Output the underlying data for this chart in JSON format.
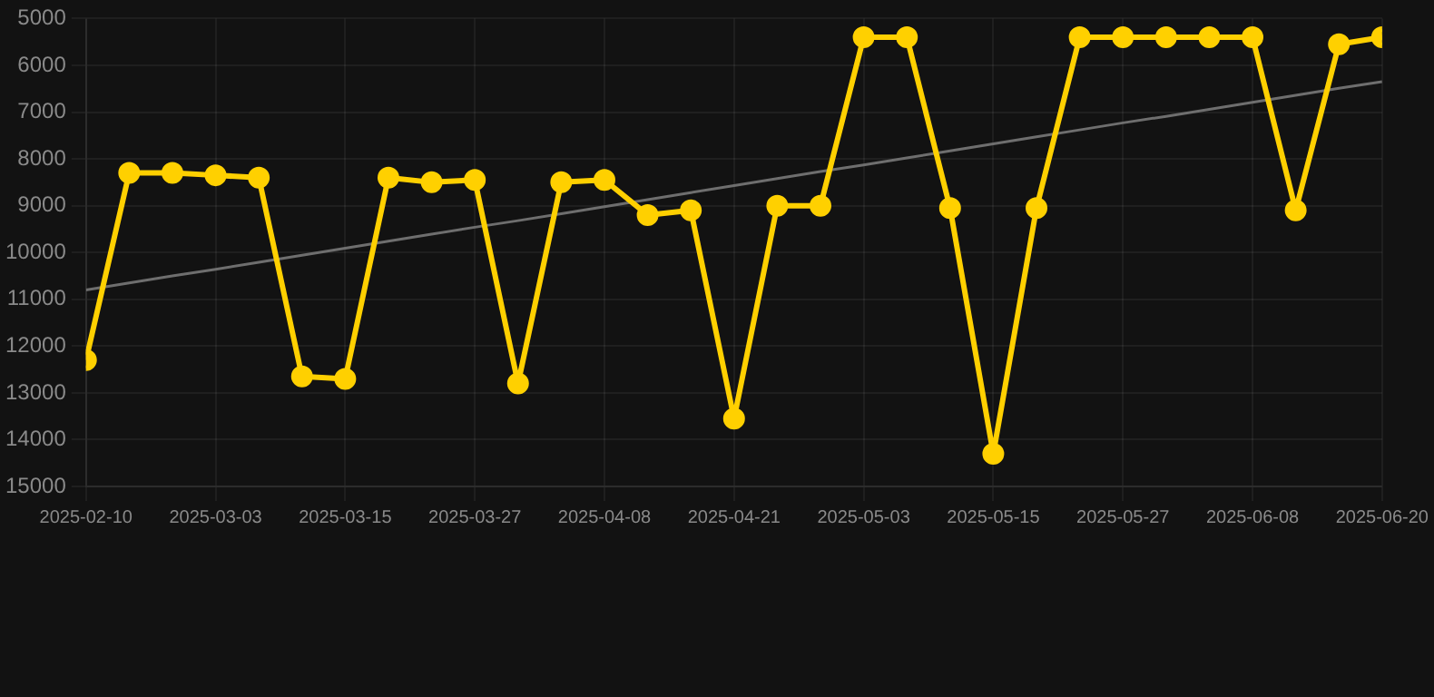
{
  "chart_data": {
    "type": "line",
    "categories": [
      "2025-02-10",
      null,
      null,
      "2025-03-03",
      null,
      null,
      "2025-03-15",
      null,
      null,
      "2025-03-27",
      null,
      null,
      "2025-04-08",
      null,
      null,
      "2025-04-21",
      null,
      null,
      "2025-05-03",
      null,
      null,
      "2025-05-15",
      null,
      null,
      "2025-05-27",
      null,
      null,
      "2025-06-08",
      null,
      null,
      "2025-06-20"
    ],
    "series": [
      {
        "color": "#ffd000",
        "marker": "circle",
        "values": [
          12300,
          8300,
          8300,
          8350,
          8400,
          12650,
          12700,
          8400,
          8500,
          8450,
          12800,
          8500,
          8450,
          9200,
          9100,
          13550,
          9000,
          9000,
          5400,
          5400,
          9050,
          14300,
          9050,
          5400,
          5400,
          5400,
          5400,
          5400,
          9100,
          5550,
          5400
        ]
      },
      {
        "type": "line",
        "color": "#6e6e6e",
        "marker": "none",
        "values": [
          10800,
          10650,
          10500,
          10360,
          10210,
          10060,
          9910,
          9760,
          9610,
          9460,
          9320,
          9170,
          9020,
          8870,
          8720,
          8570,
          8420,
          8270,
          8130,
          7980,
          7830,
          7680,
          7530,
          7380,
          7230,
          7090,
          6940,
          6790,
          6640,
          6490,
          6350
        ]
      }
    ],
    "ylim": [
      15000,
      5000
    ],
    "yticks": [
      5000,
      6000,
      7000,
      8000,
      9000,
      10000,
      11000,
      12000,
      13000,
      14000,
      15000
    ],
    "grid": true,
    "legend": false
  }
}
